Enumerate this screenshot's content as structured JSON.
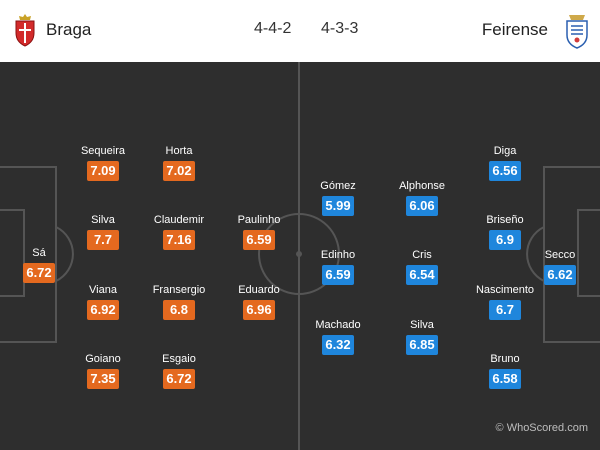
{
  "home": {
    "name": "Braga",
    "formation": "4-4-2",
    "color": "#e4691f",
    "crest_icon": "braga-crest-icon",
    "players": [
      {
        "name": "Sá",
        "rating": "6.72"
      },
      {
        "name": "Sequeira",
        "rating": "7.09"
      },
      {
        "name": "Silva",
        "rating": "7.7"
      },
      {
        "name": "Viana",
        "rating": "6.92"
      },
      {
        "name": "Goiano",
        "rating": "7.35"
      },
      {
        "name": "Horta",
        "rating": "7.02"
      },
      {
        "name": "Claudemir",
        "rating": "7.16"
      },
      {
        "name": "Fransergio",
        "rating": "6.8"
      },
      {
        "name": "Esgaio",
        "rating": "6.72"
      },
      {
        "name": "Paulinho",
        "rating": "6.59"
      },
      {
        "name": "Eduardo",
        "rating": "6.96"
      }
    ]
  },
  "away": {
    "name": "Feirense",
    "formation": "4-3-3",
    "color": "#1f86dc",
    "crest_icon": "feirense-crest-icon",
    "players": [
      {
        "name": "Gómez",
        "rating": "5.99"
      },
      {
        "name": "Edinho",
        "rating": "6.59"
      },
      {
        "name": "Machado",
        "rating": "6.32"
      },
      {
        "name": "Alphonse",
        "rating": "6.06"
      },
      {
        "name": "Cris",
        "rating": "6.54"
      },
      {
        "name": "Silva",
        "rating": "6.85"
      },
      {
        "name": "Diga",
        "rating": "6.56"
      },
      {
        "name": "Briseño",
        "rating": "6.9"
      },
      {
        "name": "Nascimento",
        "rating": "6.7"
      },
      {
        "name": "Bruno",
        "rating": "6.58"
      },
      {
        "name": "Secco",
        "rating": "6.62"
      }
    ]
  },
  "watermark": "© WhoScored.com"
}
